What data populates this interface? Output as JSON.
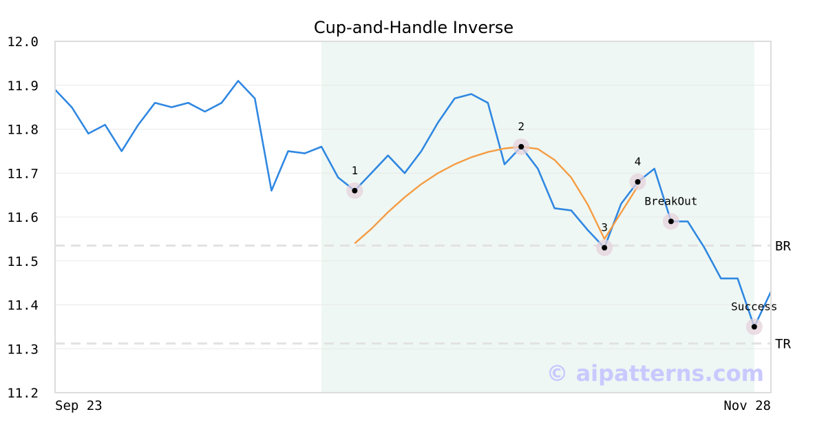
{
  "chart_data": {
    "type": "line",
    "title": "Cup-and-Handle Inverse",
    "xlabel": "",
    "ylabel": "",
    "ylim": [
      11.2,
      12.0
    ],
    "yticks": [
      "12.0",
      "11.9",
      "11.8",
      "11.7",
      "11.6",
      "11.5",
      "11.4",
      "11.3",
      "11.2"
    ],
    "x_tick_labels": [
      "Sep 23",
      "Nov 28"
    ],
    "grid": "horizontal",
    "pattern_region": {
      "start_index": 16,
      "end_index": 42,
      "color": "#eef7f3"
    },
    "series": [
      {
        "color": "#2f87e2",
        "values": [
          11.89,
          11.85,
          11.79,
          11.81,
          11.75,
          11.81,
          11.86,
          11.85,
          11.86,
          11.84,
          11.86,
          11.91,
          11.87,
          11.66,
          11.75,
          11.745,
          11.76,
          11.69,
          11.66,
          11.7,
          11.74,
          11.7,
          11.75,
          11.815,
          11.87,
          11.88,
          11.86,
          11.72,
          11.76,
          11.71,
          11.62,
          11.615,
          11.57,
          11.53,
          11.63,
          11.68,
          11.71,
          11.59,
          11.59,
          11.53,
          11.46,
          11.46,
          11.35,
          11.43
        ]
      },
      {
        "color": "#f59b42",
        "start_index": 18,
        "values": [
          11.54,
          11.573,
          11.611,
          11.645,
          11.675,
          11.7,
          11.72,
          11.736,
          11.748,
          11.756,
          11.76,
          11.755,
          11.73,
          11.69,
          11.628,
          11.55,
          11.61,
          11.67
        ]
      }
    ],
    "reference_lines": [
      {
        "label": "BR",
        "value": 11.535,
        "color": "#e2e2e2"
      },
      {
        "label": "TR",
        "value": 11.312,
        "color": "#e2e2e2"
      }
    ],
    "annotations": [
      {
        "label": "1",
        "index": 18,
        "value": 11.66,
        "label_pos": "above"
      },
      {
        "label": "2",
        "index": 28,
        "value": 11.76,
        "label_pos": "above"
      },
      {
        "label": "3",
        "index": 33,
        "value": 11.53,
        "label_pos": "above"
      },
      {
        "label": "4",
        "index": 35,
        "value": 11.68,
        "label_pos": "above"
      },
      {
        "label": "BreakOut",
        "index": 37,
        "value": 11.59,
        "label_pos": "above"
      },
      {
        "label": "Success",
        "index": 42,
        "value": 11.35,
        "label_pos": "above"
      }
    ],
    "watermark": "© aipatterns.com"
  }
}
